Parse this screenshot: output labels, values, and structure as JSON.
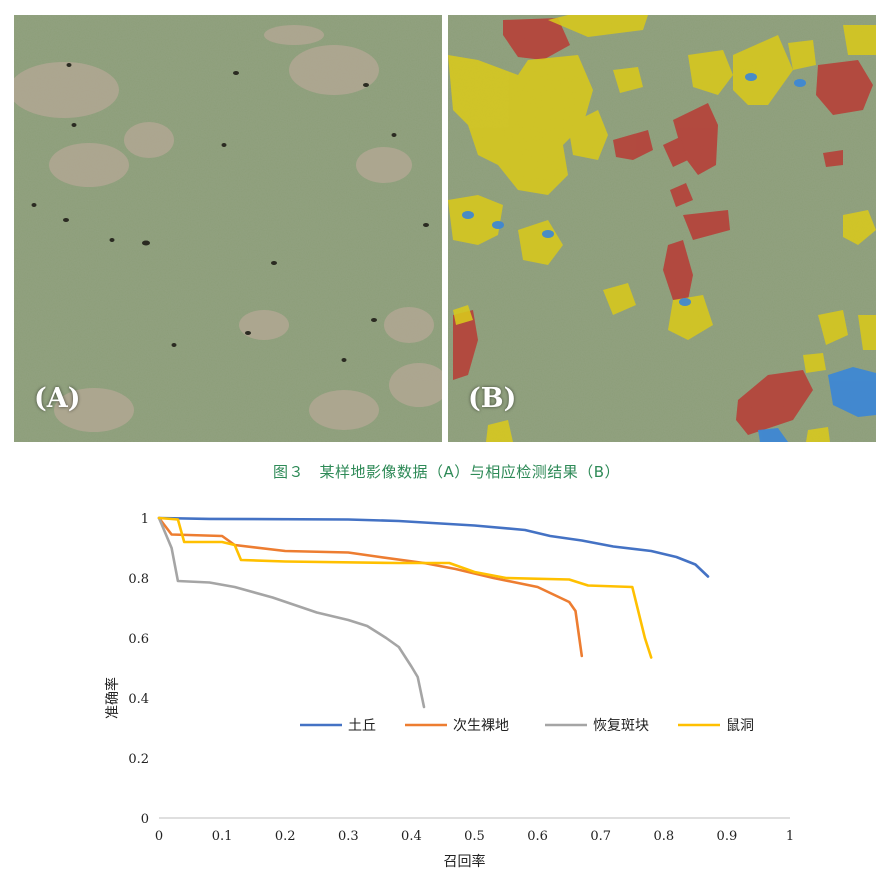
{
  "figure": {
    "panel_a_label": "(A)",
    "panel_b_label": "(B)",
    "caption": "图３　某样地影像数据（A）与相应检测结果（B）",
    "class_colors": {
      "mound": "#b5423a",
      "bare": "#d8c81c",
      "burrow": "#3a86d8",
      "patch": "#3a86d8"
    }
  },
  "chart_data": {
    "type": "line",
    "xlabel": "召回率",
    "ylabel": "准确率",
    "xlim": [
      0,
      1
    ],
    "ylim": [
      0,
      1
    ],
    "x_ticks": [
      "0",
      "0.1",
      "0.2",
      "0.3",
      "0.4",
      "0.5",
      "0.6",
      "0.7",
      "0.8",
      "0.9",
      "1"
    ],
    "y_ticks": [
      "0",
      "0.2",
      "0.4",
      "0.6",
      "0.8",
      "1"
    ],
    "legend_position": "middle-right",
    "grid": false,
    "series": [
      {
        "name": "土丘",
        "color": "#4472c4",
        "points": [
          [
            0.0,
            1.0
          ],
          [
            0.08,
            0.997
          ],
          [
            0.3,
            0.995
          ],
          [
            0.38,
            0.99
          ],
          [
            0.42,
            0.985
          ],
          [
            0.5,
            0.975
          ],
          [
            0.58,
            0.96
          ],
          [
            0.62,
            0.94
          ],
          [
            0.67,
            0.925
          ],
          [
            0.72,
            0.905
          ],
          [
            0.78,
            0.89
          ],
          [
            0.82,
            0.87
          ],
          [
            0.85,
            0.845
          ],
          [
            0.87,
            0.805
          ]
        ]
      },
      {
        "name": "次生裸地",
        "color": "#ed7d31",
        "points": [
          [
            0.0,
            1.0
          ],
          [
            0.02,
            0.945
          ],
          [
            0.1,
            0.94
          ],
          [
            0.12,
            0.91
          ],
          [
            0.2,
            0.89
          ],
          [
            0.3,
            0.885
          ],
          [
            0.35,
            0.87
          ],
          [
            0.42,
            0.85
          ],
          [
            0.47,
            0.83
          ],
          [
            0.53,
            0.8
          ],
          [
            0.6,
            0.77
          ],
          [
            0.65,
            0.72
          ],
          [
            0.66,
            0.69
          ],
          [
            0.67,
            0.54
          ]
        ]
      },
      {
        "name": "恢复斑块",
        "color": "#a5a5a5",
        "points": [
          [
            0.0,
            1.0
          ],
          [
            0.02,
            0.9
          ],
          [
            0.03,
            0.79
          ],
          [
            0.08,
            0.785
          ],
          [
            0.12,
            0.77
          ],
          [
            0.18,
            0.735
          ],
          [
            0.25,
            0.685
          ],
          [
            0.3,
            0.66
          ],
          [
            0.33,
            0.64
          ],
          [
            0.36,
            0.6
          ],
          [
            0.38,
            0.57
          ],
          [
            0.4,
            0.505
          ],
          [
            0.41,
            0.47
          ],
          [
            0.42,
            0.37
          ]
        ]
      },
      {
        "name": "鼠洞",
        "color": "#ffc000",
        "points": [
          [
            0.0,
            1.0
          ],
          [
            0.03,
            0.995
          ],
          [
            0.04,
            0.92
          ],
          [
            0.1,
            0.92
          ],
          [
            0.12,
            0.91
          ],
          [
            0.13,
            0.86
          ],
          [
            0.2,
            0.855
          ],
          [
            0.38,
            0.85
          ],
          [
            0.46,
            0.85
          ],
          [
            0.5,
            0.82
          ],
          [
            0.55,
            0.8
          ],
          [
            0.65,
            0.795
          ],
          [
            0.68,
            0.775
          ],
          [
            0.75,
            0.77
          ],
          [
            0.77,
            0.6
          ],
          [
            0.78,
            0.535
          ]
        ]
      }
    ]
  }
}
